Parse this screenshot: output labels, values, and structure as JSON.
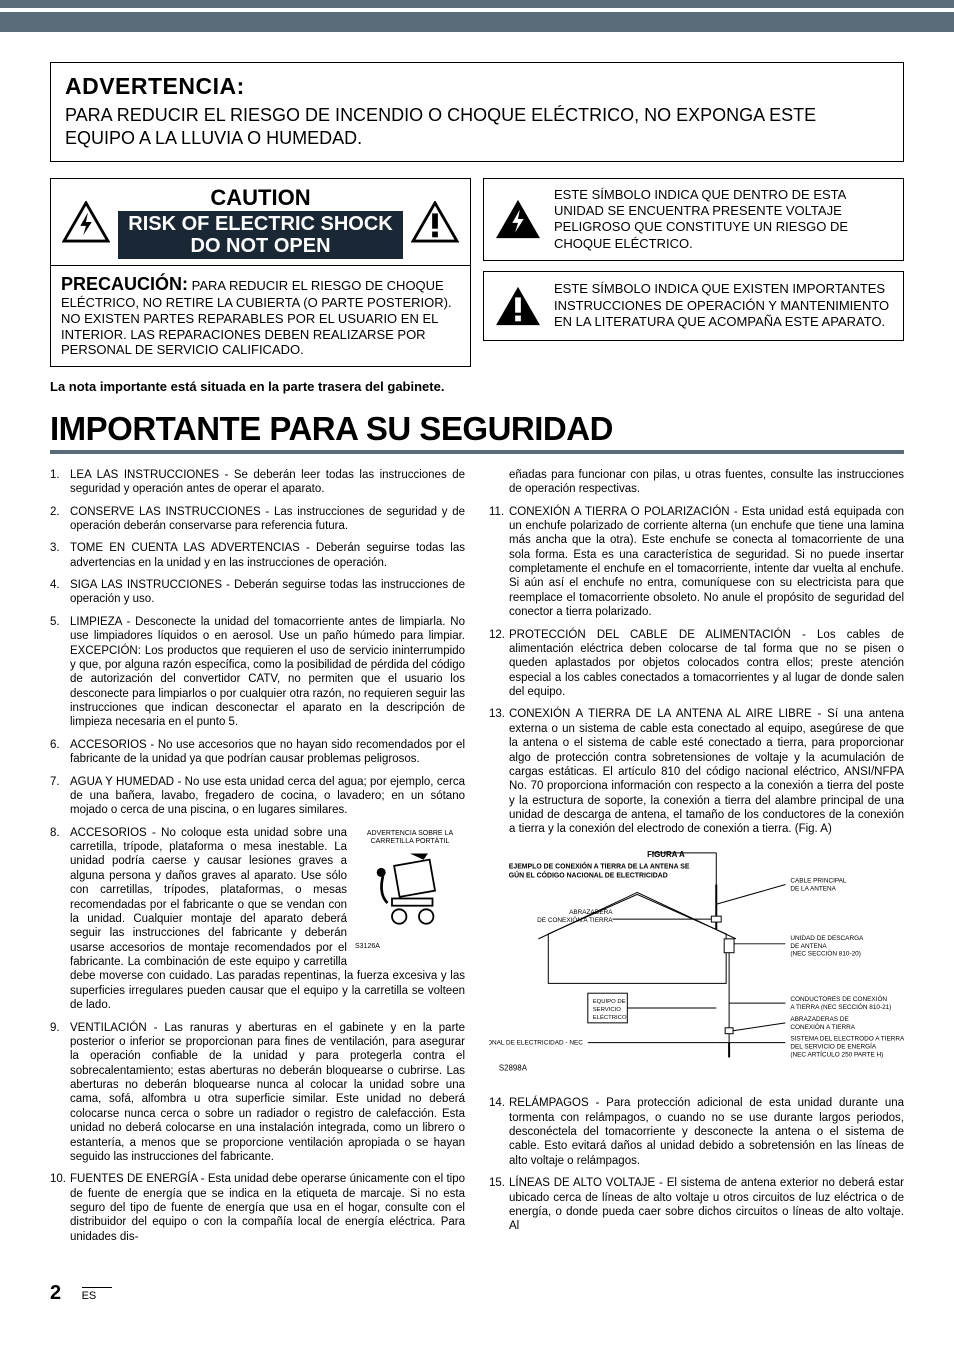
{
  "stripes": {
    "color": "#5a6b7a"
  },
  "warning": {
    "title": "ADVERTENCIA:",
    "text": "PARA REDUCIR EL RIESGO DE INCENDIO O CHOQUE ELÉCTRICO, NO EXPONGA ESTE EQUIPO A LA LLUVIA O HUMEDAD."
  },
  "caution": {
    "line1": "CAUTION",
    "line2a": "RISK OF ELECTRIC SHOCK",
    "line2b": "DO NOT OPEN",
    "precaucion_label": "PRECAUCIÓN:",
    "body": " PARA REDUCIR EL RIESGO DE CHOQUE ELÉCTRICO, NO RETIRE LA CUBIERTA (O PARTE POSTERIOR). NO EXISTEN PARTES REPARABLES POR EL USUARIO EN EL INTERIOR. LAS REPARACIONES DEBEN REALIZARSE POR PERSONAL DE SERVICIO CALIFICADO."
  },
  "symbol1": "ESTE SÍMBOLO INDICA QUE DENTRO DE ESTA UNIDAD SE ENCUENTRA PRESENTE VOLTAJE PELIGROSO QUE CONSTITUYE UN RIESGO DE CHOQUE ELÉCTRICO.",
  "symbol2": "ESTE SÍMBOLO INDICA QUE EXISTEN IMPORTANTES INSTRUCCIONES DE OPERACIÓN Y MANTENIMIENTO EN LA LITERATURA QUE ACOMPAÑA ESTE APARATO.",
  "note": "La nota importante está situada en la parte trasera del gabinete.",
  "heading": "IMPORTANTE PARA SU SEGURIDAD",
  "items": [
    "LEA LAS INSTRUCCIONES - Se deberán leer todas las instrucciones de seguridad y operación antes de operar el aparato.",
    "CONSERVE LAS INSTRUCCIONES - Las instrucciones de seguridad y de operación deberán conservarse para referencia futura.",
    "TOME EN CUENTA LAS ADVERTENCIAS - Deberán seguirse todas las advertencias en la unidad y en las instrucciones de operación.",
    "SIGA LAS INSTRUCCIONES - Deberán seguirse todas las instrucciones de operación y uso.",
    "LIMPIEZA - Desconecte la unidad del tomacorriente antes de limpiarla. No use limpiadores líquidos o en aerosol. Use un paño húmedo para limpiar. EXCEPCIÓN: Los productos que requieren el uso de servicio ininterrumpido y que, por alguna razón específica, como la posibilidad de pérdida del código de autorización del convertidor CATV, no permiten que el usuario los desconecte para limpiarlos o por cualquier otra razón, no requieren seguir las instrucciones que indican desconectar el aparato en la descripción de limpieza necesaria en el punto 5.",
    "ACCESORIOS - No use accesorios que no hayan sido recomendados por el fabricante de la unidad ya que podrían causar problemas peligrosos.",
    "AGUA Y HUMEDAD - No use esta unidad cerca del agua; por ejemplo, cerca de una bañera, lavabo, fregadero de cocina, o lavadero; en un sótano mojado o cerca de una piscina, o en lugares similares.",
    "ACCESORIOS - No coloque esta unidad sobre una carretilla, trípode, plataforma o mesa inestable. La unidad podría caerse y causar lesiones graves a alguna persona y daños graves al aparato. Use sólo con carretillas, trípodes, plataformas, o mesas recomendadas por el fabricante o que se vendan con la unidad. Cualquier montaje del aparato deberá seguir las instrucciones del fabricante y deberán usarse accesorios de montaje recomendados por el fabricante. La combinación de este equipo y carretilla debe moverse con cuidado. Las paradas repentinas, la fuerza excesiva y las superficies irregulares pueden causar que el equipo y la carretilla se volteen de lado.",
    "VENTILACIÓN - Las ranuras y aberturas en el gabinete y en la parte posterior o inferior se proporcionan para fines de ventilación, para asegurar la operación confiable de la unidad y para protegerla contra el sobrecalentamiento; estas aberturas no deberán bloquearse o cubrirse. Las aberturas no deberán bloquearse nunca al colocar la unidad sobre una cama, sofá, alfombra u otra superficie similar. Este unidad no deberá colocarse nunca cerca o sobre un radiador o registro de calefacción. Esta unidad no deberá colocarse en una instalación integrada, como un librero o estantería, a menos que se proporcione ventilación apropiada o se hayan seguido las instrucciones del fabricante.",
    "FUENTES DE ENERGÍA - Esta unidad debe operarse únicamente con el tipo de fuente de energía que se indica en la etiqueta de marcaje. Si no esta seguro del tipo de fuente de energía que usa en el hogar, consulte con el distribuidor del equipo o con la compañía local de energía eléctrica. Para unidades dis-"
  ],
  "items_r": [
    "eñadas para funcionar con pilas, u otras fuentes, consulte las instrucciones de operación respectivas.",
    "CONEXIÓN A TIERRA O POLARIZACIÓN - Esta unidad está equipada con un enchufe polarizado de corriente alterna (un enchufe que tiene una lamina más ancha que la otra). Este enchufe se conecta al tomacorriente de una sola forma. Esta es una característica de seguridad. Si no puede insertar completamente el enchufe en el tomacorriente, intente dar vuelta al enchufe. Si aún así el enchufe no entra, comuníquese con su electricista para que reemplace el tomacorriente obsoleto.  No anule el propósito de seguridad del conector a tierra polarizado.",
    "PROTECCIÓN DEL CABLE DE ALIMENTACIÓN - Los cables de alimentación eléctrica deben colocarse de tal forma que no se pisen o queden aplastados por objetos colocados contra ellos; preste atención especial a los cables conectados a tomacorrientes y al lugar de donde salen del equipo.",
    "CONEXIÓN A TIERRA DE LA ANTENA AL AIRE LIBRE - Sí una antena externa o un sistema de cable esta conectado al equipo, asegúrese de que la antena o el sistema de cable esté conectado a tierra, para proporcionar algo de protección contra sobretensiones de voltaje y la acumulación de cargas estáticas. El artículo 810 del código nacional eléctrico, ANSI/NFPA No. 70 proporciona información con respecto a la conexión a tierra del poste y la estructura de soporte, la conexión a tierra del alambre principal de una unidad de descarga de antena, el tamaño de los conductores de la conexión a tierra y la conexión del electrodo de conexión a tierra. (Fig. A)",
    "RELÁMPAGOS - Para protección adicional de esta unidad durante una tormenta con relámpagos, o cuando no se use durante largos periodos, desconéctela del tomacorriente y desconecte la antena o el sistema de cable. Esto evitará daños al unidad debido a sobretensión en las líneas de alto voltaje o relámpagos.",
    "LÍNEAS DE ALTO VOLTAJE - El sistema de antena exterior no deberá estar ubicado cerca de líneas de alto voltaje u otros circuitos de luz eléctrica o de energía, o donde pueda caer sobre dichos circuitos o líneas de alto voltaje. Al"
  ],
  "cart": {
    "label": "ADVERTENCIA SOBRE LA CARRETILLA PORTÁTIL",
    "code": "S3126A"
  },
  "antenna": {
    "title": "FIGURA A",
    "subtitle": "EJEMPLO DE CONEXIÓN A TIERRA DE LA ANTENA SEGÚN EL CÓDIGO NACIONAL DE ELECTRICIDAD",
    "labels": {
      "cable": "CABLE PRINCIPAL DE LA ANTENA",
      "abrazadera": "ABRAZADERA DE CONEXIÓN A TIERRA",
      "unidad": "UNIDAD DE DESCARGA DE ANTENA (NEC SECCIÓN 810-20)",
      "equipo": "EQUIPO DE SERVICIO ELÉCTRICO",
      "conductores": "CONDUCTORES DE CONEXIÓN A TIERRA (NEC SECCIÓN 810-21)",
      "abrazaderas2": "ABRAZADERAS DE CONEXIÓN A TIERRA",
      "codigo": "CÓDIGO NACIONAL DE ELECTRICIDAD - NEC",
      "sistema": "SISTEMA DEL ELECTRODO A TIERRA DEL SERVICIO DE ENERGÍA (NEC ARTÍCULO 250 PARTE H)"
    },
    "code": "S2898A"
  },
  "footer": {
    "page": "2",
    "lang": "ES"
  }
}
